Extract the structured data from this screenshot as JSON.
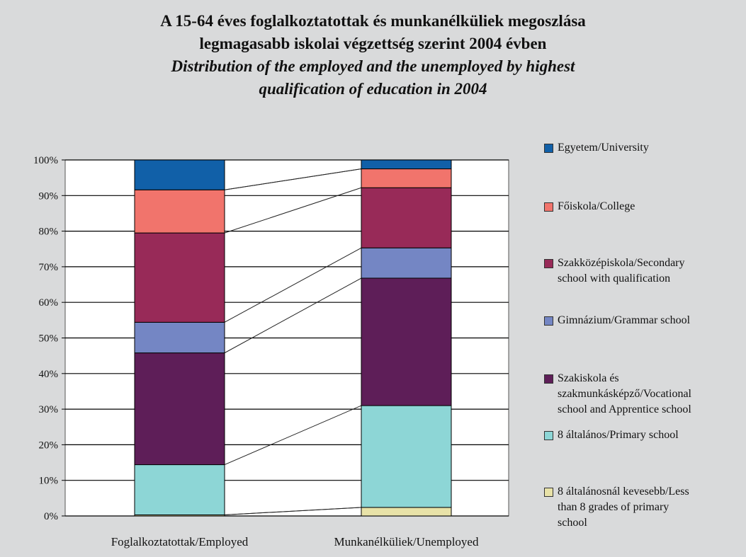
{
  "title": {
    "hu_line1": "A 15-64 éves foglalkoztatottak és munkanélküliek megoszlása",
    "hu_line2": "legmagasabb iskolai végzettség szerint 2004 évben",
    "en_line1": "Distribution of the employed and the unemployed by highest",
    "en_line2": "qualification of education in 2004"
  },
  "chart_data": {
    "type": "bar",
    "stacked": true,
    "percent": true,
    "categories": [
      "Foglalkoztatottak/Employed",
      "Munkanélküliek/Unemployed"
    ],
    "series": [
      {
        "name": "8 általánosnál kevesebb/Less than 8 grades of primary school",
        "color": "#e8e2a8",
        "values": [
          0.3,
          2.4
        ]
      },
      {
        "name": "8 általános/Primary school",
        "color": "#8dd6d6",
        "values": [
          14.1,
          28.6
        ]
      },
      {
        "name": "Szakiskola és szakmunkásképző/Vocational school and Apprentice school",
        "color": "#5e1e58",
        "values": [
          31.4,
          35.8
        ]
      },
      {
        "name": "Gimnázium/Grammar school",
        "color": "#7486c4",
        "values": [
          8.6,
          8.5
        ]
      },
      {
        "name": "Szakközépiskola/Secondary school with qualification",
        "color": "#982a58",
        "values": [
          25.1,
          16.9
        ]
      },
      {
        "name": "Főiskola/College",
        "color": "#f1746c",
        "values": [
          12.1,
          5.3
        ]
      },
      {
        "name": "Egyetem/University",
        "color": "#1160a8",
        "values": [
          8.4,
          2.5
        ]
      }
    ],
    "yticks": [
      "0%",
      "10%",
      "20%",
      "30%",
      "40%",
      "50%",
      "60%",
      "70%",
      "80%",
      "90%",
      "100%"
    ],
    "ylim": [
      0,
      100
    ],
    "grid": true,
    "legend_position": "right"
  },
  "legend": [
    {
      "lines": [
        "Egyetem/University"
      ],
      "color": "#1160a8"
    },
    {
      "lines": [
        "Főiskola/College"
      ],
      "color": "#f1746c"
    },
    {
      "lines": [
        "Szakközépiskola/Secondary",
        "school with qualification"
      ],
      "color": "#982a58"
    },
    {
      "lines": [
        "Gimnázium/Grammar school"
      ],
      "color": "#7486c4"
    },
    {
      "lines": [
        "Szakiskola és",
        "szakmunkásképző/Vocational",
        "school and Apprentice school"
      ],
      "color": "#5e1e58"
    },
    {
      "lines": [
        "8 általános/Primary school"
      ],
      "color": "#8dd6d6"
    },
    {
      "lines": [
        "8 általánosnál kevesebb/Less",
        "than 8 grades of primary",
        "school"
      ],
      "color": "#e8e2a8"
    }
  ]
}
